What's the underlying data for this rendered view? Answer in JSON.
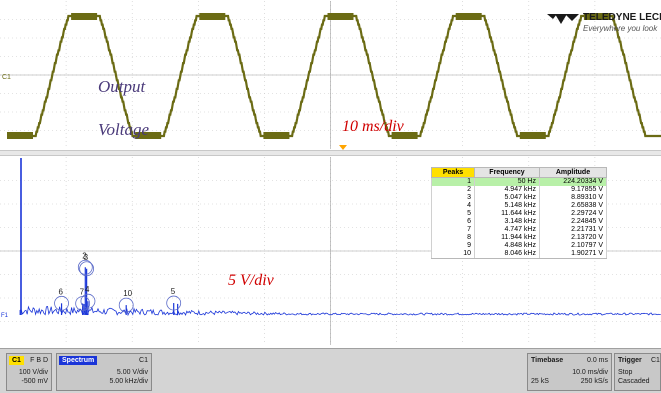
{
  "brand": {
    "name": "TELEDYNE LECROY",
    "tagline": "Everywhere you look"
  },
  "annotations": {
    "output": "Output",
    "voltage": "Voltage",
    "time_per_div": "10 ms/div",
    "volts_per_div": "5 V/div"
  },
  "waveform": {
    "channel_label": "C1",
    "cycles_visible": 5,
    "colors": {
      "trace": "#6b6b14",
      "grid": "#c8c8c8",
      "trigger": "#ffa500"
    }
  },
  "spectrum": {
    "trace_label": "F1",
    "colors": {
      "trace": "#1a35d8",
      "marker": "#5a6ac8"
    },
    "peak_markers": [
      {
        "label": "2",
        "freq_khz": 4.947
      },
      {
        "label": "3",
        "freq_khz": 5.047
      },
      {
        "label": "6",
        "freq_khz": 3.148
      },
      {
        "label": "7",
        "freq_khz": 4.747
      },
      {
        "label": "4",
        "freq_khz": 5.148
      },
      {
        "label": "10",
        "freq_khz": 8.046
      },
      {
        "label": "5",
        "freq_khz": 11.644
      }
    ]
  },
  "peaks_table": {
    "headers": [
      "Peaks",
      "Frequency",
      "Amplitude"
    ],
    "rows": [
      [
        "1",
        "50 Hz",
        "224.20334 V"
      ],
      [
        "2",
        "4.947 kHz",
        "9.17855 V"
      ],
      [
        "3",
        "5.047 kHz",
        "8.89310 V"
      ],
      [
        "4",
        "5.148 kHz",
        "2.65838 V"
      ],
      [
        "5",
        "11.644 kHz",
        "2.29724 V"
      ],
      [
        "6",
        "3.148 kHz",
        "2.24845 V"
      ],
      [
        "7",
        "4.747 kHz",
        "2.21731 V"
      ],
      [
        "8",
        "11.944 kHz",
        "2.13720 V"
      ],
      [
        "9",
        "4.848 kHz",
        "2.10797 V"
      ],
      [
        "10",
        "8.046 kHz",
        "1.90271 V"
      ]
    ]
  },
  "status_bar": {
    "c1": {
      "badge": "C1",
      "flags": "F B D",
      "scale": "100 V/div",
      "offset": "-500 mV"
    },
    "f1": {
      "badge": "Spectrum",
      "source": "C1",
      "scale": "5.00 V/div",
      "freq": "5.00 kHz/div"
    },
    "timebase": {
      "label": "Timebase",
      "delay": "0.0 ms",
      "div": "10.0 ms/div",
      "samples": "25 kS",
      "rate": "250 kS/s"
    },
    "trigger": {
      "label": "Trigger",
      "source": "C1 D",
      "mode": "Stop",
      "type": "Cascaded"
    }
  }
}
